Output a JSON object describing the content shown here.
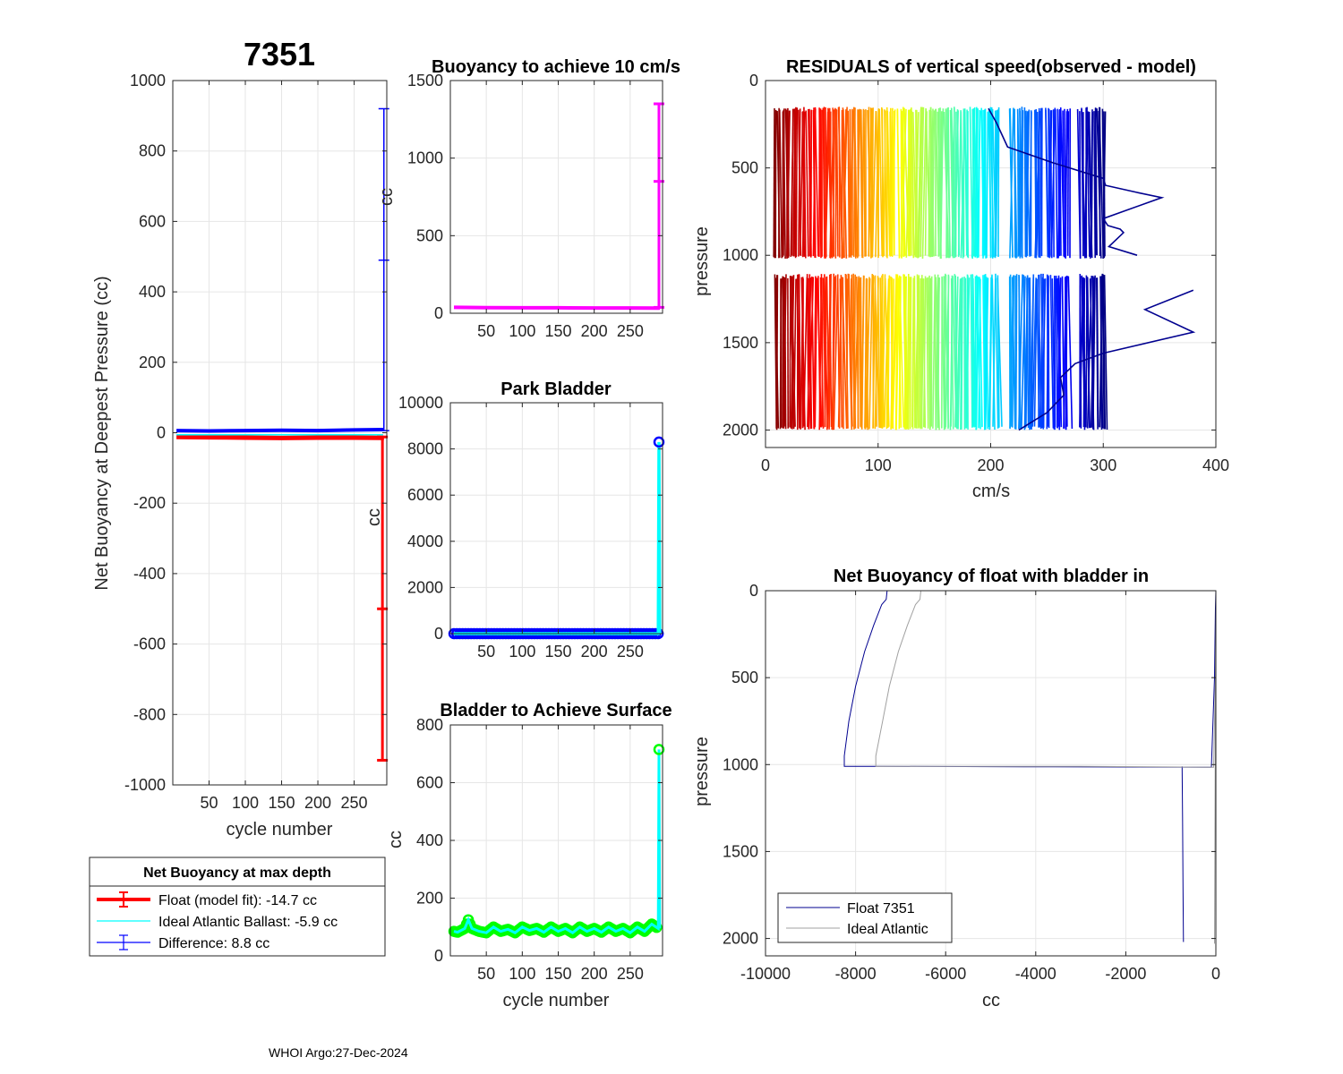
{
  "figure": {
    "float_id": "7351",
    "footer": "WHOI Argo:27-Dec-2024"
  },
  "chart_data": [
    {
      "id": "net_buoyancy_max_depth",
      "type": "errorbar",
      "title": "7351",
      "xlabel": "cycle number",
      "ylabel": "Net Buoyancy at Deepest Pressure (cc)",
      "xlim": [
        0,
        295
      ],
      "ylim": [
        -1000,
        1000
      ],
      "xticks": [
        50,
        100,
        150,
        200,
        250
      ],
      "yticks": [
        -1000,
        -800,
        -600,
        -400,
        -200,
        0,
        200,
        400,
        600,
        800,
        1000
      ],
      "grid": true,
      "legend": {
        "title": "Net Buoyancy at max depth",
        "entries": [
          {
            "label": "Float (model fit): -14.7 cc",
            "color": "#ff0000"
          },
          {
            "label": "Ideal Atlantic Ballast:  -5.9 cc",
            "color": "#00ffff"
          },
          {
            "label": "Difference:   8.8 cc",
            "color": "#0000ff"
          }
        ]
      },
      "series": [
        {
          "name": "Float (model fit)",
          "color": "#ff0000",
          "x": [
            5,
            50,
            100,
            150,
            200,
            250,
            289,
            290,
            291
          ],
          "y": [
            -12,
            -13,
            -14,
            -15,
            -14,
            -14,
            -14.7,
            -14.7,
            -14.7
          ],
          "err_cycle": 289,
          "err_low": -930,
          "err_mid": -500
        },
        {
          "name": "Ideal Atlantic Ballast",
          "color": "#00ffff",
          "x": [
            5,
            290
          ],
          "y": [
            -5.9,
            -5.9
          ]
        },
        {
          "name": "Difference",
          "color": "#0000ff",
          "x": [
            5,
            50,
            100,
            150,
            200,
            250,
            289,
            290,
            291
          ],
          "y": [
            6,
            5,
            6,
            7,
            6,
            8,
            8.8,
            8.8,
            8.8
          ],
          "err_cycle": 291,
          "err_high": 920,
          "err_mid": 490
        }
      ]
    },
    {
      "id": "buoyancy_10cms",
      "type": "line",
      "title": "Buoyancy to achieve 10 cm/s",
      "ylabel": "cc",
      "xlim": [
        0,
        295
      ],
      "ylim": [
        0,
        1500
      ],
      "xticks": [
        50,
        100,
        150,
        200,
        250
      ],
      "yticks": [
        0,
        500,
        1000,
        1500
      ],
      "grid": true,
      "series": [
        {
          "name": "buoyancy",
          "color": "#ff00ff",
          "x": [
            5,
            50,
            100,
            150,
            200,
            250,
            289,
            290,
            291
          ],
          "y": [
            38,
            36,
            35,
            35,
            34,
            34,
            33,
            33,
            34
          ],
          "err_cycle": 290,
          "err_high": 1350,
          "err_mid": 850
        }
      ]
    },
    {
      "id": "park_bladder",
      "type": "line",
      "title": "Park Bladder",
      "ylabel": "cc",
      "xlim": [
        0,
        295
      ],
      "ylim": [
        0,
        10000
      ],
      "xticks": [
        50,
        100,
        150,
        200,
        250
      ],
      "yticks": [
        0,
        2000,
        4000,
        6000,
        8000,
        10000
      ],
      "grid": true,
      "series": [
        {
          "name": "park bladder",
          "color": "#0000ff",
          "line_color": "#00ffff",
          "x": [
            5,
            50,
            100,
            150,
            200,
            250,
            289,
            290,
            291
          ],
          "y": [
            0,
            0,
            0,
            0,
            0,
            0,
            0,
            8300,
            0
          ]
        }
      ]
    },
    {
      "id": "bladder_surface",
      "type": "line",
      "title": "Bladder to Achieve Surface",
      "xlabel": "cycle number",
      "ylabel": "cc",
      "xlim": [
        0,
        295
      ],
      "ylim": [
        0,
        800
      ],
      "xticks": [
        50,
        100,
        150,
        200,
        250
      ],
      "yticks": [
        0,
        200,
        400,
        600,
        800
      ],
      "grid": true,
      "series": [
        {
          "name": "surface bladder",
          "color": "#00ff00",
          "line_color": "#00ffff",
          "x": [
            5,
            10,
            20,
            25,
            30,
            40,
            50,
            60,
            70,
            80,
            90,
            100,
            110,
            120,
            130,
            140,
            150,
            160,
            170,
            180,
            190,
            200,
            210,
            220,
            230,
            240,
            250,
            260,
            270,
            280,
            289,
            290,
            291
          ],
          "y": [
            85,
            82,
            95,
            125,
            95,
            85,
            80,
            100,
            85,
            92,
            80,
            100,
            88,
            95,
            82,
            100,
            85,
            95,
            80,
            100,
            85,
            95,
            82,
            100,
            85,
            95,
            80,
            100,
            85,
            110,
            95,
            715,
            95
          ]
        }
      ]
    },
    {
      "id": "residuals",
      "type": "line",
      "title": "RESIDUALS of vertical speed(observed - model)",
      "xlabel": "cm/s",
      "ylabel": "pressure",
      "xlim": [
        0,
        400
      ],
      "ylim": [
        0,
        2100
      ],
      "y_reversed": true,
      "xticks": [
        0,
        100,
        200,
        300,
        400
      ],
      "yticks": [
        0,
        500,
        1000,
        1500,
        2000
      ],
      "grid": true,
      "colormap": "jet (cycle 1 red to last cycle dark blue)",
      "segments": [
        {
          "p_top": 165,
          "p_bottom": 1020,
          "x_start": 8,
          "x_end": 302
        },
        {
          "p_top": 1120,
          "p_bottom": 2000,
          "x_start": 8,
          "x_end": 302
        }
      ],
      "profiles": [
        {
          "name": "upper profile",
          "color": "#00008f",
          "x": [
            198,
            205,
            215,
            255,
            300,
            302,
            330,
            352,
            300,
            304,
            315,
            318,
            305,
            330
          ],
          "p": [
            160,
            240,
            380,
            470,
            560,
            600,
            640,
            670,
            790,
            830,
            850,
            870,
            950,
            1000
          ]
        },
        {
          "name": "lower profile",
          "color": "#00008f",
          "x": [
            380,
            337,
            380,
            300,
            275,
            262,
            265,
            250,
            225
          ],
          "p": [
            1200,
            1310,
            1440,
            1560,
            1620,
            1700,
            1800,
            1900,
            2000
          ]
        }
      ]
    },
    {
      "id": "net_buoyancy_bladder_in",
      "type": "line",
      "title": "Net Buoyancy of float with bladder in",
      "xlabel": "cc",
      "ylabel": "pressure",
      "xlim": [
        -10000,
        0
      ],
      "ylim": [
        0,
        2100
      ],
      "y_reversed": true,
      "xticks": [
        -10000,
        -8000,
        -6000,
        -4000,
        -2000,
        0
      ],
      "yticks": [
        0,
        500,
        1000,
        1500,
        2000
      ],
      "grid": true,
      "legend": {
        "entries": [
          {
            "label": "Float 7351",
            "color": "#00008f"
          },
          {
            "label": "Ideal Atlantic",
            "color": "#a0a0a0"
          }
        ]
      },
      "series": [
        {
          "name": "Float 7351",
          "color": "#00008f",
          "x": [
            -7300,
            -7320,
            -7420,
            -7600,
            -7800,
            -8000,
            -8150,
            -8250,
            -8250,
            -7500,
            -5000,
            -3600,
            -100,
            -30,
            -10,
            0
          ],
          "y": [
            0,
            50,
            80,
            200,
            350,
            550,
            750,
            950,
            1010,
            1010,
            1012,
            1013,
            1015,
            500,
            100,
            0
          ]
        },
        {
          "name": "Float 7351 lower",
          "color": "#00008f",
          "x": [
            -750,
            -740,
            -730,
            -720
          ],
          "y": [
            1010,
            1300,
            1700,
            2020
          ]
        },
        {
          "name": "Ideal Atlantic",
          "color": "#a0a0a0",
          "x": [
            -6550,
            -6570,
            -6670,
            -6850,
            -7050,
            -7250,
            -7400,
            -7550,
            -7550,
            -3000,
            -50,
            -10,
            0,
            -30
          ],
          "y": [
            0,
            50,
            80,
            200,
            350,
            550,
            750,
            950,
            1010,
            1010,
            1015,
            500,
            100,
            2030
          ]
        }
      ]
    }
  ]
}
